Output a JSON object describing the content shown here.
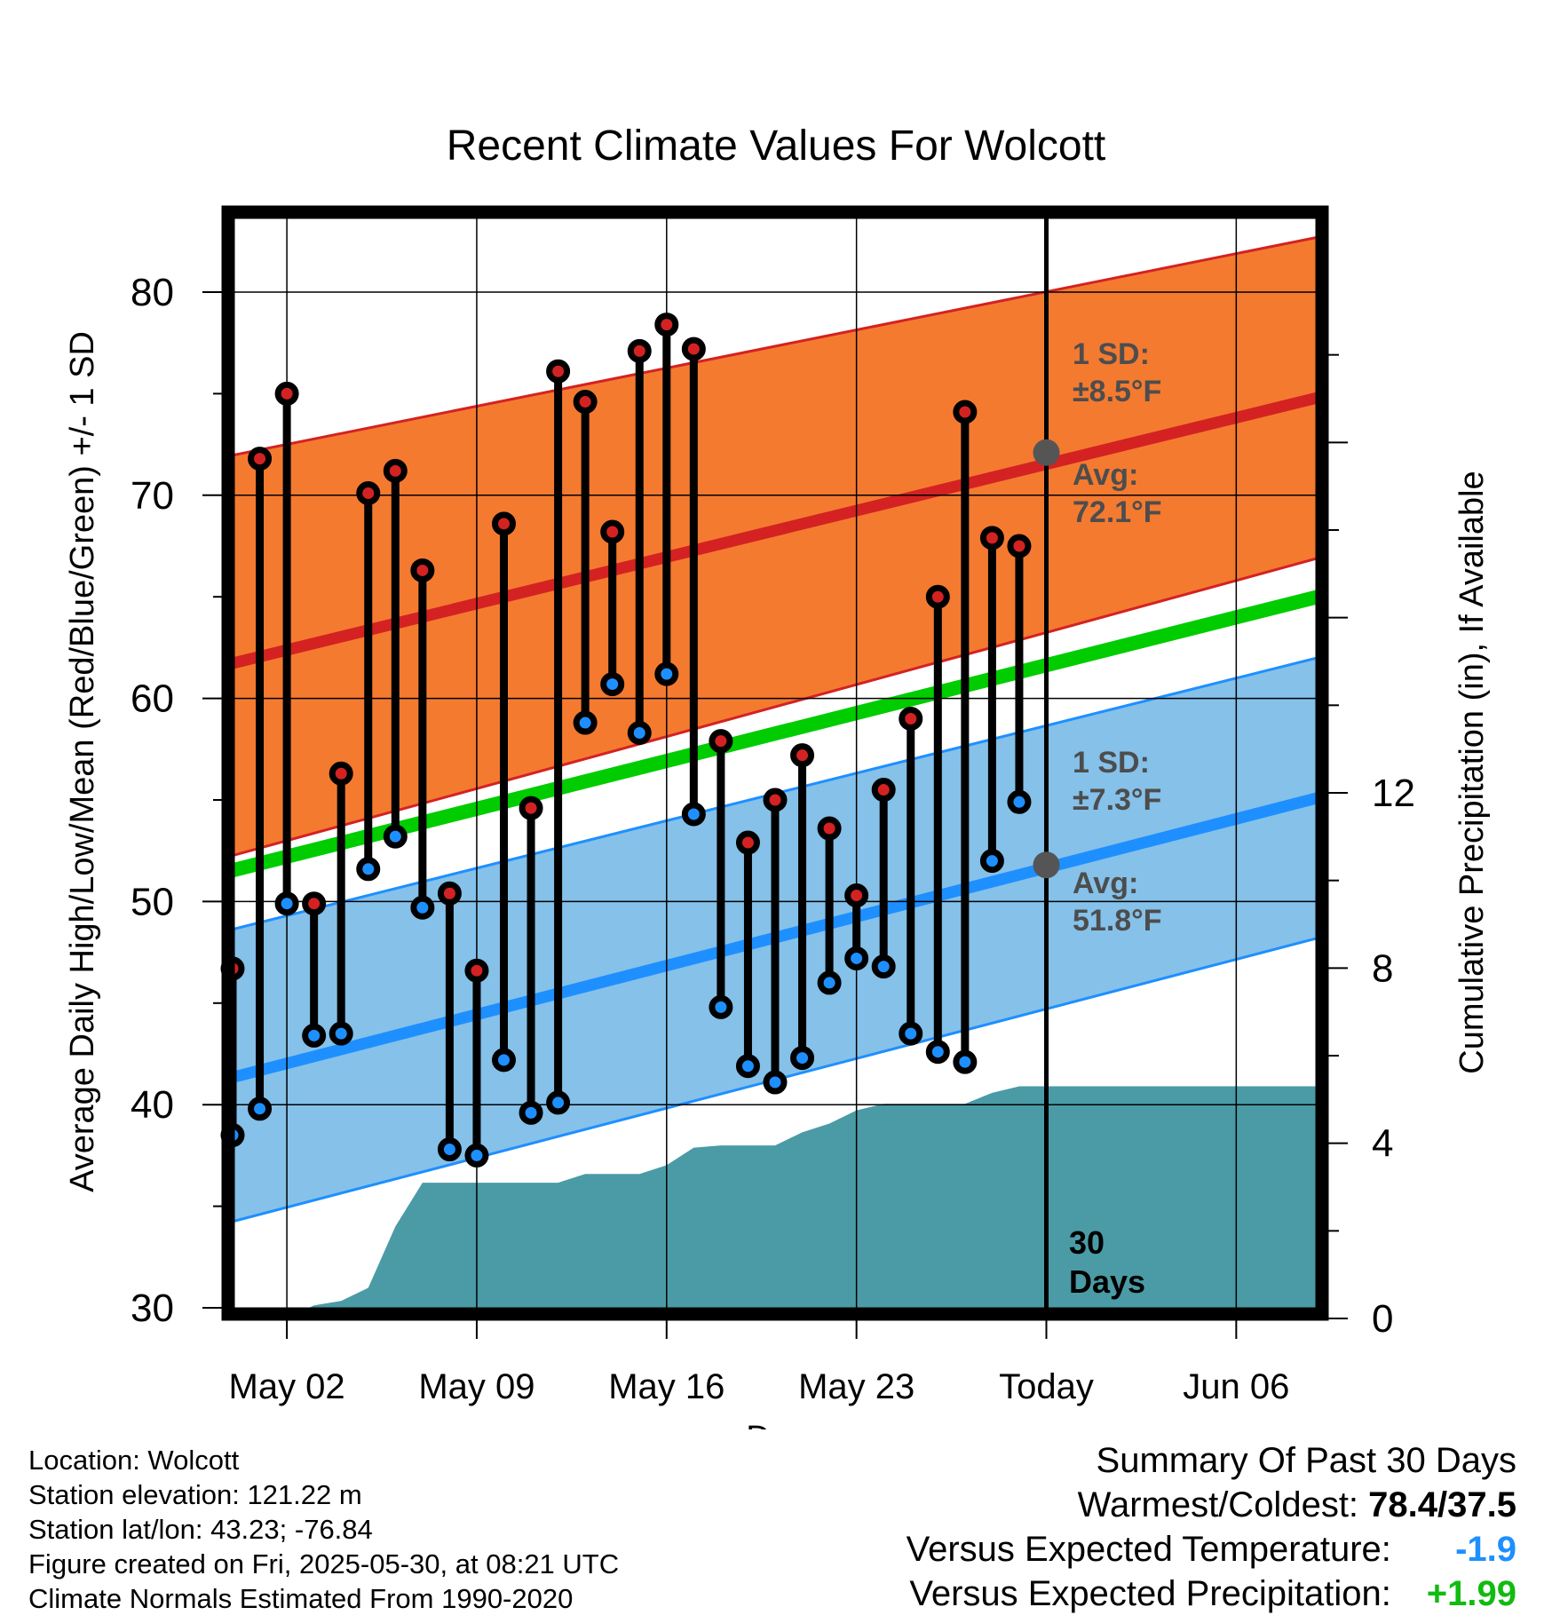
{
  "chart_data": {
    "type": "line",
    "title": "Recent Climate Values For Wolcott",
    "xlabel": "Day",
    "ylabel": "Average Daily High/Low/Mean (Red/Blue/Green) +/- 1 SD",
    "y2label": "Cumulative Precipitation (in), If Available",
    "ylim": [
      30,
      84
    ],
    "y2lim": [
      0,
      24
    ],
    "y_ticks": [
      30,
      40,
      50,
      60,
      70,
      80
    ],
    "y2_ticks": [
      0,
      4,
      8,
      12
    ],
    "x_range": [
      "2025-04-30",
      "2025-06-09"
    ],
    "x_ticks": [
      {
        "date": "2025-05-02",
        "label": "May 02"
      },
      {
        "date": "2025-05-09",
        "label": "May 09"
      },
      {
        "date": "2025-05-16",
        "label": "May 16"
      },
      {
        "date": "2025-05-23",
        "label": "May 23"
      },
      {
        "date": "2025-05-30",
        "label": "Today"
      },
      {
        "date": "2025-06-06",
        "label": "Jun 06"
      }
    ],
    "today": "2025-05-30",
    "dates": [
      "2025-04-30",
      "2025-05-01",
      "2025-05-02",
      "2025-05-03",
      "2025-05-04",
      "2025-05-05",
      "2025-05-06",
      "2025-05-07",
      "2025-05-08",
      "2025-05-09",
      "2025-05-10",
      "2025-05-11",
      "2025-05-12",
      "2025-05-13",
      "2025-05-14",
      "2025-05-15",
      "2025-05-16",
      "2025-05-17",
      "2025-05-18",
      "2025-05-19",
      "2025-05-20",
      "2025-05-21",
      "2025-05-22",
      "2025-05-23",
      "2025-05-24",
      "2025-05-25",
      "2025-05-26",
      "2025-05-27",
      "2025-05-28",
      "2025-05-29"
    ],
    "high": [
      46.7,
      71.8,
      75.0,
      49.9,
      56.3,
      70.1,
      71.2,
      66.3,
      50.4,
      46.6,
      68.6,
      54.6,
      76.1,
      74.6,
      68.2,
      77.1,
      78.4,
      77.2,
      57.9,
      52.9,
      55.0,
      57.2,
      53.6,
      50.3,
      55.5,
      59.0,
      65.0,
      74.1,
      67.9,
      67.5
    ],
    "low": [
      38.5,
      39.8,
      49.9,
      43.4,
      43.5,
      51.6,
      53.2,
      49.7,
      37.8,
      37.5,
      42.2,
      39.6,
      40.1,
      58.8,
      60.7,
      58.3,
      61.2,
      54.3,
      44.8,
      41.9,
      41.1,
      42.3,
      46.0,
      47.2,
      46.8,
      43.5,
      42.6,
      42.1,
      52.0,
      54.9
    ],
    "normals": {
      "dates": [
        "2025-04-29",
        "2025-06-09"
      ],
      "high_mean": [
        61.4,
        74.8
      ],
      "high_sd_upper": [
        71.7,
        82.7
      ],
      "high_sd_lower": [
        51.9,
        66.9
      ],
      "mean": [
        51.2,
        65.0
      ],
      "low_mean": [
        41.0,
        55.1
      ],
      "low_sd_upper": [
        48.3,
        62.0
      ],
      "low_sd_lower": [
        33.9,
        48.2
      ]
    },
    "cumulative_precipitation": {
      "dates": [
        "2025-04-29",
        "2025-05-01",
        "2025-05-02",
        "2025-05-03",
        "2025-05-04",
        "2025-05-05",
        "2025-05-06",
        "2025-05-07",
        "2025-05-08",
        "2025-05-09",
        "2025-05-10",
        "2025-05-11",
        "2025-05-12",
        "2025-05-13",
        "2025-05-14",
        "2025-05-15",
        "2025-05-16",
        "2025-05-17",
        "2025-05-18",
        "2025-05-19",
        "2025-05-20",
        "2025-05-21",
        "2025-05-22",
        "2025-05-23",
        "2025-05-24",
        "2025-05-25",
        "2025-05-26",
        "2025-05-27",
        "2025-05-28",
        "2025-05-29",
        "2025-05-30",
        "2025-06-09"
      ],
      "values": [
        0.0,
        0.0,
        0.0,
        0.3,
        0.4,
        0.7,
        2.1,
        3.1,
        3.1,
        3.1,
        3.1,
        3.1,
        3.1,
        3.3,
        3.3,
        3.3,
        3.5,
        3.9,
        3.95,
        3.95,
        3.95,
        4.25,
        4.45,
        4.75,
        4.9,
        4.9,
        4.9,
        4.9,
        5.15,
        5.3,
        5.3,
        5.3
      ]
    },
    "annotations": {
      "high_sd": "1 SD:",
      "high_sd_value": "±8.5°F",
      "high_avg": "Avg:",
      "high_avg_value": "72.1°F",
      "low_sd": "1 SD:",
      "low_sd_value": "±7.3°F",
      "low_avg": "Avg:",
      "low_avg_value": "51.8°F",
      "days_count": "30",
      "days_word": "Days",
      "high_avg_marker": 72.1,
      "low_avg_marker": 51.8
    },
    "colors": {
      "high_band": "#f47a30",
      "high_line": "#d42222",
      "low_band": "#85c1e9",
      "low_line": "#1e8fff",
      "mean_line": "#00cc00",
      "precip": "#4a9ba6",
      "annotation": "#4d4d4d",
      "marker": "#555555"
    }
  },
  "footer": {
    "location": "Location: Wolcott",
    "elevation": "Station elevation: 121.22 m",
    "latlon": "Station lat/lon: 43.23; -76.84",
    "created": "Figure created on Fri, 2025-05-30, at 08:21 UTC",
    "normals": "Climate Normals Estimated From 1990-2020"
  },
  "summary": {
    "title": "Summary Of Past 30 Days",
    "warmest_coldest_label": "Warmest/Coldest:",
    "warmest_coldest_value": "78.4/37.5",
    "temp_label": "Versus Expected Temperature:",
    "temp_value": "-1.9",
    "temp_color": "#1e8fff",
    "precip_label": "Versus Expected Precipitation:",
    "precip_value": "+1.99",
    "precip_color": "#11bb11"
  }
}
